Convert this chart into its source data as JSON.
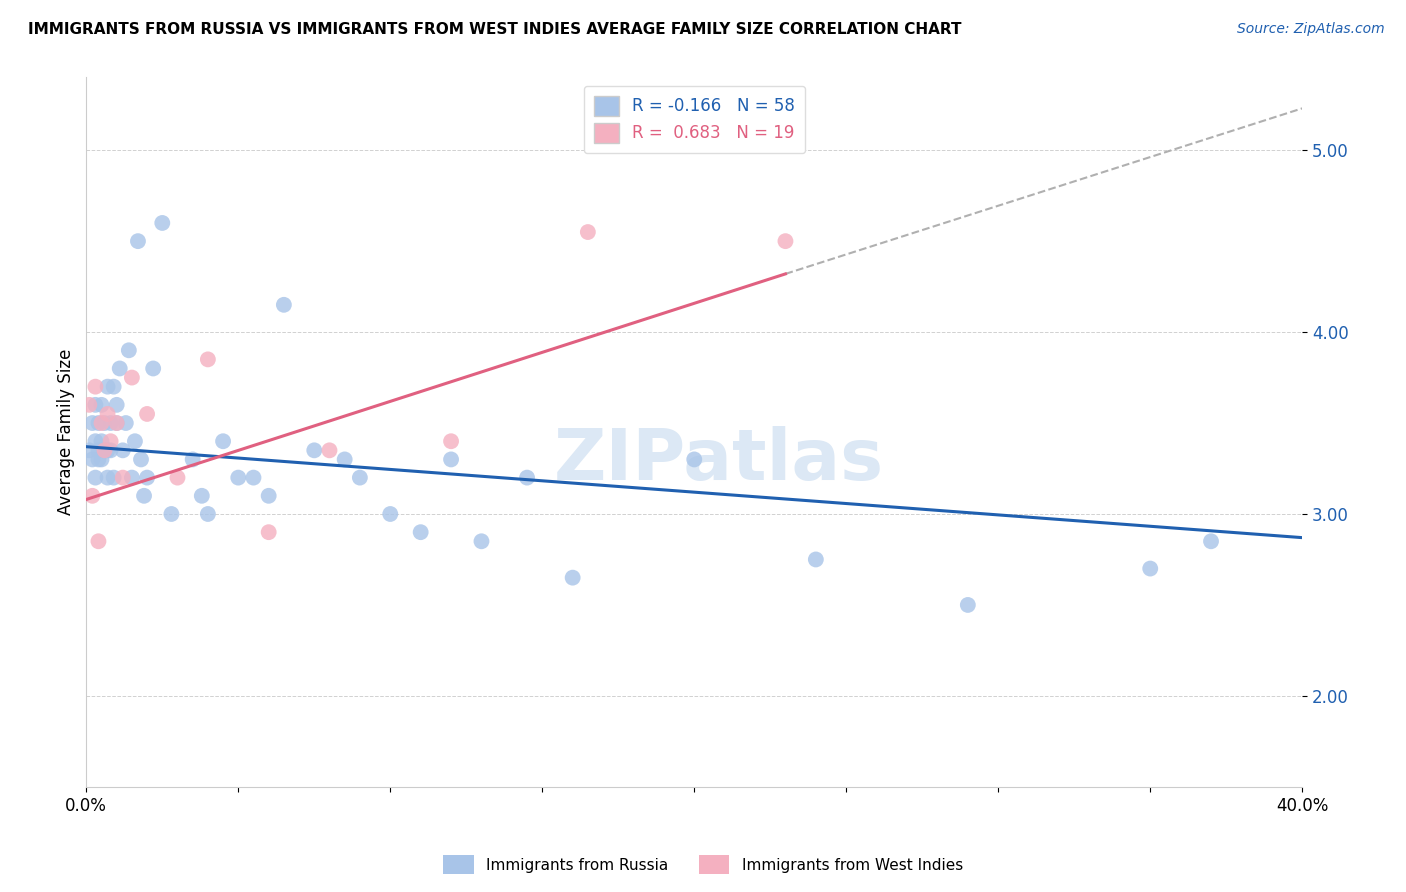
{
  "title": "IMMIGRANTS FROM RUSSIA VS IMMIGRANTS FROM WEST INDIES AVERAGE FAMILY SIZE CORRELATION CHART",
  "source": "Source: ZipAtlas.com",
  "ylabel": "Average Family Size",
  "xlim": [
    0.0,
    0.4
  ],
  "ylim": [
    1.5,
    5.4
  ],
  "yticks": [
    2.0,
    3.0,
    4.0,
    5.0
  ],
  "xticks": [
    0.0,
    0.05,
    0.1,
    0.15,
    0.2,
    0.25,
    0.3,
    0.35,
    0.4
  ],
  "russia_color": "#a8c4e8",
  "westindies_color": "#f4b0c0",
  "russia_line_color": "#2060b0",
  "westindies_line_color": "#e06080",
  "russia_R": -0.166,
  "russia_N": 58,
  "westindies_R": 0.683,
  "westindies_N": 19,
  "russia_line_x0": 0.0,
  "russia_line_y0": 3.37,
  "russia_line_x1": 0.4,
  "russia_line_y1": 2.87,
  "westindies_line_x0": 0.0,
  "westindies_line_y0": 3.08,
  "westindies_line_x1": 0.23,
  "westindies_line_y1": 4.32,
  "dashed_line_x0": 0.23,
  "dashed_line_y0": 4.32,
  "dashed_line_x1": 0.4,
  "dashed_line_y1": 5.23,
  "russia_scatter_x": [
    0.001,
    0.002,
    0.002,
    0.003,
    0.003,
    0.003,
    0.004,
    0.004,
    0.004,
    0.005,
    0.005,
    0.005,
    0.006,
    0.006,
    0.007,
    0.007,
    0.007,
    0.008,
    0.008,
    0.009,
    0.009,
    0.01,
    0.01,
    0.011,
    0.012,
    0.013,
    0.014,
    0.015,
    0.016,
    0.017,
    0.018,
    0.019,
    0.02,
    0.022,
    0.025,
    0.028,
    0.035,
    0.038,
    0.04,
    0.045,
    0.05,
    0.055,
    0.06,
    0.065,
    0.075,
    0.085,
    0.09,
    0.1,
    0.11,
    0.12,
    0.13,
    0.145,
    0.16,
    0.2,
    0.24,
    0.29,
    0.35,
    0.37
  ],
  "russia_scatter_y": [
    3.35,
    3.3,
    3.5,
    3.2,
    3.4,
    3.6,
    3.3,
    3.5,
    3.35,
    3.4,
    3.6,
    3.3,
    3.5,
    3.35,
    3.7,
    3.35,
    3.2,
    3.5,
    3.35,
    3.7,
    3.2,
    3.5,
    3.6,
    3.8,
    3.35,
    3.5,
    3.9,
    3.2,
    3.4,
    4.5,
    3.3,
    3.1,
    3.2,
    3.8,
    4.6,
    3.0,
    3.3,
    3.1,
    3.0,
    3.4,
    3.2,
    3.2,
    3.1,
    4.15,
    3.35,
    3.3,
    3.2,
    3.0,
    2.9,
    3.3,
    2.85,
    3.2,
    2.65,
    3.3,
    2.75,
    2.5,
    2.7,
    2.85
  ],
  "westindies_scatter_x": [
    0.001,
    0.002,
    0.003,
    0.004,
    0.005,
    0.006,
    0.007,
    0.008,
    0.01,
    0.012,
    0.015,
    0.02,
    0.03,
    0.04,
    0.06,
    0.08,
    0.12,
    0.165,
    0.23
  ],
  "westindies_scatter_y": [
    3.6,
    3.1,
    3.7,
    2.85,
    3.5,
    3.35,
    3.55,
    3.4,
    3.5,
    3.2,
    3.75,
    3.55,
    3.2,
    3.85,
    2.9,
    3.35,
    3.4,
    4.55,
    4.5
  ]
}
